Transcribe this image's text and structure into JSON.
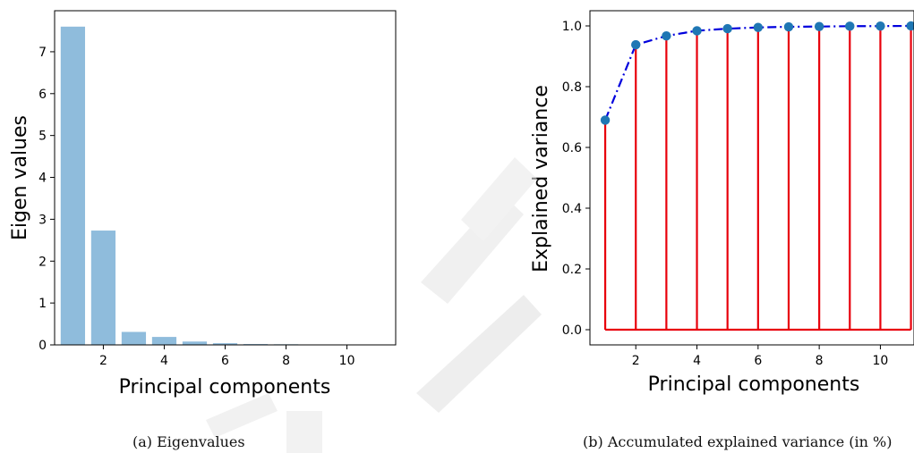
{
  "chart_data": [
    {
      "type": "bar",
      "x": [
        1,
        2,
        3,
        4,
        5,
        6,
        7,
        8,
        9,
        10,
        11
      ],
      "values": [
        7.6,
        2.73,
        0.31,
        0.19,
        0.08,
        0.04,
        0.02,
        0.015,
        0.01,
        0.006,
        0.003
      ],
      "xlabel": "Principal components",
      "ylabel": "Eigen values",
      "xticks": [
        2,
        4,
        6,
        8,
        10
      ],
      "yticks": [
        0,
        1,
        2,
        3,
        4,
        5,
        6,
        7
      ],
      "xlim": [
        0.4,
        11.6
      ],
      "ylim": [
        0,
        7.98
      ],
      "color": "#8fbcdc",
      "grid": false,
      "caption": "(a) Eigenvalues"
    },
    {
      "type": "line",
      "x": [
        1,
        2,
        3,
        4,
        5,
        6,
        7,
        8,
        9,
        10,
        11
      ],
      "values": [
        0.69,
        0.938,
        0.967,
        0.984,
        0.991,
        0.995,
        0.997,
        0.998,
        0.999,
        0.9995,
        1.0
      ],
      "stems": true,
      "xlabel": "Principal components",
      "ylabel": "Explained variance",
      "xticks": [
        2,
        4,
        6,
        8,
        10
      ],
      "yticks": [
        0.0,
        0.2,
        0.4,
        0.6,
        0.8,
        1.0
      ],
      "xlim": [
        0.5,
        11.1
      ],
      "ylim": [
        -0.05,
        1.05
      ],
      "line_color": "#0000dd",
      "marker_color": "#1f77b4",
      "stem_color": "#e8000b",
      "grid": false,
      "caption": "(b) Accumulated explained variance (in %)"
    }
  ]
}
